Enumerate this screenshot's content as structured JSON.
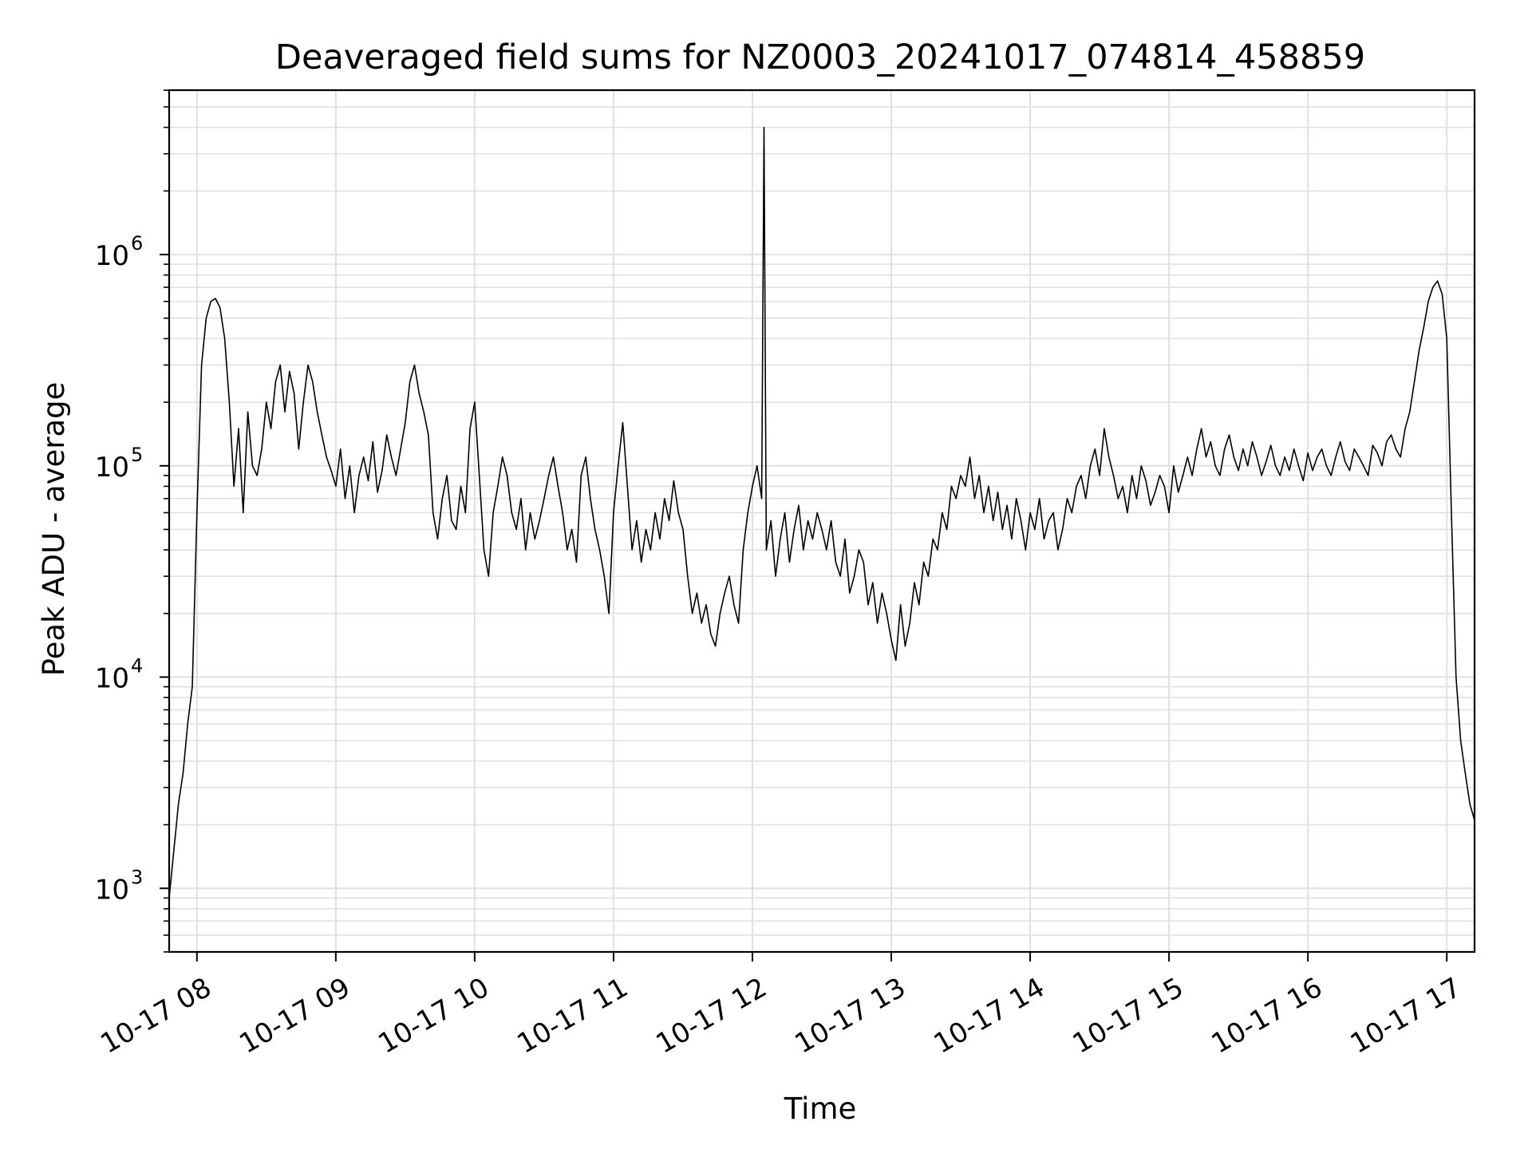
{
  "chart_data": {
    "type": "line",
    "title": "Deaveraged field sums for NZ0003_20241017_074814_458859",
    "xlabel": "Time",
    "ylabel": "Peak ADU - average",
    "yscale": "log",
    "ylim": [
      500,
      6000000
    ],
    "xlim": [
      "2024-10-17 07:48",
      "2024-10-17 17:12"
    ],
    "grid": true,
    "line_color": "#000000",
    "grid_color": "#e0e0e0",
    "x_ticks": [
      {
        "value": "2024-10-17 08:00",
        "label": "10-17 08"
      },
      {
        "value": "2024-10-17 09:00",
        "label": "10-17 09"
      },
      {
        "value": "2024-10-17 10:00",
        "label": "10-17 10"
      },
      {
        "value": "2024-10-17 11:00",
        "label": "10-17 11"
      },
      {
        "value": "2024-10-17 12:00",
        "label": "10-17 12"
      },
      {
        "value": "2024-10-17 13:00",
        "label": "10-17 13"
      },
      {
        "value": "2024-10-17 14:00",
        "label": "10-17 14"
      },
      {
        "value": "2024-10-17 15:00",
        "label": "10-17 15"
      },
      {
        "value": "2024-10-17 16:00",
        "label": "10-17 16"
      },
      {
        "value": "2024-10-17 17:00",
        "label": "10-17 17"
      }
    ],
    "y_ticks": [
      {
        "value": 1000,
        "base": "10",
        "exp": "3"
      },
      {
        "value": 10000,
        "base": "10",
        "exp": "4"
      },
      {
        "value": 100000,
        "base": "10",
        "exp": "5"
      },
      {
        "value": 1000000,
        "base": "10",
        "exp": "6"
      }
    ],
    "series": [
      {
        "x": [
          "2024-10-17 07:48",
          "2024-10-17 07:50",
          "2024-10-17 07:52",
          "2024-10-17 07:54",
          "2024-10-17 07:56",
          "2024-10-17 07:58",
          "2024-10-17 08:00",
          "2024-10-17 08:02",
          "2024-10-17 08:04",
          "2024-10-17 08:06",
          "2024-10-17 08:08",
          "2024-10-17 08:10",
          "2024-10-17 08:12",
          "2024-10-17 08:14",
          "2024-10-17 08:16",
          "2024-10-17 08:18",
          "2024-10-17 08:20",
          "2024-10-17 08:22",
          "2024-10-17 08:24",
          "2024-10-17 08:26",
          "2024-10-17 08:28",
          "2024-10-17 08:30",
          "2024-10-17 08:32",
          "2024-10-17 08:34",
          "2024-10-17 08:36",
          "2024-10-17 08:38",
          "2024-10-17 08:40",
          "2024-10-17 08:42",
          "2024-10-17 08:44",
          "2024-10-17 08:46",
          "2024-10-17 08:48",
          "2024-10-17 08:50",
          "2024-10-17 08:52",
          "2024-10-17 08:54",
          "2024-10-17 08:56",
          "2024-10-17 08:58",
          "2024-10-17 09:00",
          "2024-10-17 09:02",
          "2024-10-17 09:04",
          "2024-10-17 09:06",
          "2024-10-17 09:08",
          "2024-10-17 09:10",
          "2024-10-17 09:12",
          "2024-10-17 09:14",
          "2024-10-17 09:16",
          "2024-10-17 09:18",
          "2024-10-17 09:20",
          "2024-10-17 09:22",
          "2024-10-17 09:24",
          "2024-10-17 09:26",
          "2024-10-17 09:28",
          "2024-10-17 09:30",
          "2024-10-17 09:32",
          "2024-10-17 09:34",
          "2024-10-17 09:36",
          "2024-10-17 09:38",
          "2024-10-17 09:40",
          "2024-10-17 09:42",
          "2024-10-17 09:44",
          "2024-10-17 09:46",
          "2024-10-17 09:48",
          "2024-10-17 09:50",
          "2024-10-17 09:52",
          "2024-10-17 09:54",
          "2024-10-17 09:56",
          "2024-10-17 09:58",
          "2024-10-17 10:00",
          "2024-10-17 10:02",
          "2024-10-17 10:04",
          "2024-10-17 10:06",
          "2024-10-17 10:08",
          "2024-10-17 10:10",
          "2024-10-17 10:12",
          "2024-10-17 10:14",
          "2024-10-17 10:16",
          "2024-10-17 10:18",
          "2024-10-17 10:20",
          "2024-10-17 10:22",
          "2024-10-17 10:24",
          "2024-10-17 10:26",
          "2024-10-17 10:28",
          "2024-10-17 10:30",
          "2024-10-17 10:32",
          "2024-10-17 10:34",
          "2024-10-17 10:36",
          "2024-10-17 10:38",
          "2024-10-17 10:40",
          "2024-10-17 10:42",
          "2024-10-17 10:44",
          "2024-10-17 10:46",
          "2024-10-17 10:48",
          "2024-10-17 10:50",
          "2024-10-17 10:52",
          "2024-10-17 10:54",
          "2024-10-17 10:56",
          "2024-10-17 10:58",
          "2024-10-17 11:00",
          "2024-10-17 11:02",
          "2024-10-17 11:04",
          "2024-10-17 11:06",
          "2024-10-17 11:08",
          "2024-10-17 11:10",
          "2024-10-17 11:12",
          "2024-10-17 11:14",
          "2024-10-17 11:16",
          "2024-10-17 11:18",
          "2024-10-17 11:20",
          "2024-10-17 11:22",
          "2024-10-17 11:24",
          "2024-10-17 11:26",
          "2024-10-17 11:28",
          "2024-10-17 11:30",
          "2024-10-17 11:32",
          "2024-10-17 11:34",
          "2024-10-17 11:36",
          "2024-10-17 11:38",
          "2024-10-17 11:40",
          "2024-10-17 11:42",
          "2024-10-17 11:44",
          "2024-10-17 11:46",
          "2024-10-17 11:48",
          "2024-10-17 11:50",
          "2024-10-17 11:52",
          "2024-10-17 11:54",
          "2024-10-17 11:56",
          "2024-10-17 11:58",
          "2024-10-17 12:00",
          "2024-10-17 12:02",
          "2024-10-17 12:04",
          "2024-10-17 12:05",
          "2024-10-17 12:06",
          "2024-10-17 12:08",
          "2024-10-17 12:10",
          "2024-10-17 12:12",
          "2024-10-17 12:14",
          "2024-10-17 12:16",
          "2024-10-17 12:18",
          "2024-10-17 12:20",
          "2024-10-17 12:22",
          "2024-10-17 12:24",
          "2024-10-17 12:26",
          "2024-10-17 12:28",
          "2024-10-17 12:30",
          "2024-10-17 12:32",
          "2024-10-17 12:34",
          "2024-10-17 12:36",
          "2024-10-17 12:38",
          "2024-10-17 12:40",
          "2024-10-17 12:42",
          "2024-10-17 12:44",
          "2024-10-17 12:46",
          "2024-10-17 12:48",
          "2024-10-17 12:50",
          "2024-10-17 12:52",
          "2024-10-17 12:54",
          "2024-10-17 12:56",
          "2024-10-17 12:58",
          "2024-10-17 13:00",
          "2024-10-17 13:02",
          "2024-10-17 13:04",
          "2024-10-17 13:06",
          "2024-10-17 13:08",
          "2024-10-17 13:10",
          "2024-10-17 13:12",
          "2024-10-17 13:14",
          "2024-10-17 13:16",
          "2024-10-17 13:18",
          "2024-10-17 13:20",
          "2024-10-17 13:22",
          "2024-10-17 13:24",
          "2024-10-17 13:26",
          "2024-10-17 13:28",
          "2024-10-17 13:30",
          "2024-10-17 13:32",
          "2024-10-17 13:34",
          "2024-10-17 13:36",
          "2024-10-17 13:38",
          "2024-10-17 13:40",
          "2024-10-17 13:42",
          "2024-10-17 13:44",
          "2024-10-17 13:46",
          "2024-10-17 13:48",
          "2024-10-17 13:50",
          "2024-10-17 13:52",
          "2024-10-17 13:54",
          "2024-10-17 13:56",
          "2024-10-17 13:58",
          "2024-10-17 14:00",
          "2024-10-17 14:02",
          "2024-10-17 14:04",
          "2024-10-17 14:06",
          "2024-10-17 14:08",
          "2024-10-17 14:10",
          "2024-10-17 14:12",
          "2024-10-17 14:14",
          "2024-10-17 14:16",
          "2024-10-17 14:18",
          "2024-10-17 14:20",
          "2024-10-17 14:22",
          "2024-10-17 14:24",
          "2024-10-17 14:26",
          "2024-10-17 14:28",
          "2024-10-17 14:30",
          "2024-10-17 14:32",
          "2024-10-17 14:34",
          "2024-10-17 14:36",
          "2024-10-17 14:38",
          "2024-10-17 14:40",
          "2024-10-17 14:42",
          "2024-10-17 14:44",
          "2024-10-17 14:46",
          "2024-10-17 14:48",
          "2024-10-17 14:50",
          "2024-10-17 14:52",
          "2024-10-17 14:54",
          "2024-10-17 14:56",
          "2024-10-17 14:58",
          "2024-10-17 15:00",
          "2024-10-17 15:02",
          "2024-10-17 15:04",
          "2024-10-17 15:06",
          "2024-10-17 15:08",
          "2024-10-17 15:10",
          "2024-10-17 15:12",
          "2024-10-17 15:14",
          "2024-10-17 15:16",
          "2024-10-17 15:18",
          "2024-10-17 15:20",
          "2024-10-17 15:22",
          "2024-10-17 15:24",
          "2024-10-17 15:26",
          "2024-10-17 15:28",
          "2024-10-17 15:30",
          "2024-10-17 15:32",
          "2024-10-17 15:34",
          "2024-10-17 15:36",
          "2024-10-17 15:38",
          "2024-10-17 15:40",
          "2024-10-17 15:42",
          "2024-10-17 15:44",
          "2024-10-17 15:46",
          "2024-10-17 15:48",
          "2024-10-17 15:50",
          "2024-10-17 15:52",
          "2024-10-17 15:54",
          "2024-10-17 15:56",
          "2024-10-17 15:58",
          "2024-10-17 16:00",
          "2024-10-17 16:02",
          "2024-10-17 16:04",
          "2024-10-17 16:06",
          "2024-10-17 16:08",
          "2024-10-17 16:10",
          "2024-10-17 16:12",
          "2024-10-17 16:14",
          "2024-10-17 16:16",
          "2024-10-17 16:18",
          "2024-10-17 16:20",
          "2024-10-17 16:22",
          "2024-10-17 16:24",
          "2024-10-17 16:26",
          "2024-10-17 16:28",
          "2024-10-17 16:30",
          "2024-10-17 16:32",
          "2024-10-17 16:34",
          "2024-10-17 16:36",
          "2024-10-17 16:38",
          "2024-10-17 16:40",
          "2024-10-17 16:42",
          "2024-10-17 16:44",
          "2024-10-17 16:46",
          "2024-10-17 16:48",
          "2024-10-17 16:50",
          "2024-10-17 16:52",
          "2024-10-17 16:54",
          "2024-10-17 16:56",
          "2024-10-17 16:58",
          "2024-10-17 17:00",
          "2024-10-17 17:02",
          "2024-10-17 17:04",
          "2024-10-17 17:06",
          "2024-10-17 17:08",
          "2024-10-17 17:10",
          "2024-10-17 17:12"
        ],
        "y": [
          900,
          1500,
          2500,
          3500,
          6000,
          9000,
          60000,
          300000,
          500000,
          600000,
          620000,
          560000,
          400000,
          200000,
          80000,
          150000,
          60000,
          180000,
          100000,
          90000,
          120000,
          200000,
          150000,
          250000,
          300000,
          180000,
          280000,
          220000,
          120000,
          200000,
          300000,
          250000,
          180000,
          140000,
          110000,
          95000,
          80000,
          120000,
          70000,
          100000,
          60000,
          90000,
          110000,
          85000,
          130000,
          75000,
          95000,
          140000,
          110000,
          90000,
          120000,
          160000,
          250000,
          300000,
          220000,
          180000,
          140000,
          60000,
          45000,
          70000,
          90000,
          55000,
          50000,
          80000,
          60000,
          150000,
          200000,
          90000,
          40000,
          30000,
          60000,
          80000,
          110000,
          90000,
          60000,
          50000,
          70000,
          40000,
          60000,
          45000,
          55000,
          70000,
          90000,
          110000,
          80000,
          60000,
          40000,
          50000,
          35000,
          90000,
          110000,
          70000,
          50000,
          40000,
          30000,
          20000,
          60000,
          100000,
          160000,
          80000,
          40000,
          55000,
          35000,
          50000,
          40000,
          60000,
          45000,
          70000,
          55000,
          85000,
          60000,
          50000,
          30000,
          20000,
          25000,
          18000,
          22000,
          16000,
          14000,
          20000,
          25000,
          30000,
          22000,
          18000,
          40000,
          60000,
          80000,
          100000,
          70000,
          4000000,
          40000,
          55000,
          30000,
          45000,
          60000,
          35000,
          50000,
          65000,
          40000,
          55000,
          45000,
          60000,
          50000,
          40000,
          55000,
          35000,
          30000,
          45000,
          25000,
          30000,
          40000,
          35000,
          22000,
          28000,
          18000,
          25000,
          20000,
          15000,
          12000,
          22000,
          14000,
          18000,
          28000,
          22000,
          35000,
          30000,
          45000,
          40000,
          60000,
          50000,
          80000,
          70000,
          90000,
          80000,
          110000,
          70000,
          90000,
          60000,
          80000,
          55000,
          75000,
          50000,
          65000,
          45000,
          70000,
          55000,
          40000,
          60000,
          50000,
          70000,
          45000,
          55000,
          60000,
          40000,
          50000,
          70000,
          60000,
          80000,
          90000,
          70000,
          100000,
          120000,
          90000,
          150000,
          110000,
          90000,
          70000,
          80000,
          60000,
          90000,
          70000,
          100000,
          85000,
          65000,
          75000,
          90000,
          80000,
          60000,
          100000,
          75000,
          90000,
          110000,
          90000,
          120000,
          150000,
          110000,
          130000,
          100000,
          90000,
          120000,
          140000,
          110000,
          95000,
          120000,
          100000,
          130000,
          110000,
          90000,
          105000,
          125000,
          100000,
          90000,
          110000,
          95000,
          120000,
          100000,
          85000,
          115000,
          95000,
          110000,
          120000,
          100000,
          90000,
          110000,
          130000,
          105000,
          95000,
          120000,
          110000,
          100000,
          90000,
          125000,
          115000,
          100000,
          130000,
          140000,
          120000,
          110000,
          150000,
          180000,
          250000,
          350000,
          450000,
          600000,
          700000,
          750000,
          650000,
          400000,
          60000,
          10000,
          5000,
          3500,
          2500,
          2100
        ]
      }
    ]
  }
}
